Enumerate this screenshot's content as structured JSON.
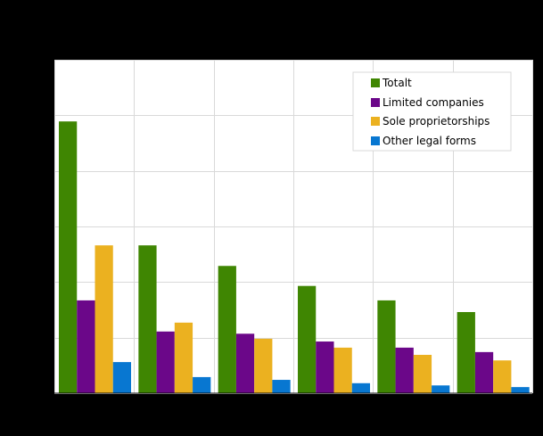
{
  "chart_data": {
    "type": "bar",
    "title": "",
    "xlabel": "",
    "ylabel": "",
    "categories": [
      "",
      "",
      "",
      "",
      "",
      ""
    ],
    "series": [
      {
        "name": "Totalt",
        "color": "#3f8602",
        "values": [
          4.89,
          2.66,
          2.29,
          1.93,
          1.67,
          1.46
        ]
      },
      {
        "name": "Limited companies",
        "color": "#6b0789",
        "values": [
          1.67,
          1.11,
          1.07,
          0.93,
          0.82,
          0.74
        ]
      },
      {
        "name": "Sole proprietorships",
        "color": "#ebb120",
        "values": [
          2.66,
          1.27,
          0.98,
          0.82,
          0.69,
          0.59
        ]
      },
      {
        "name": "Other legal forms",
        "color": "#0877d1",
        "values": [
          0.56,
          0.29,
          0.24,
          0.18,
          0.14,
          0.11
        ]
      }
    ],
    "ylim": [
      0,
      6
    ],
    "y_gridlines": 7,
    "x_gridlines": true,
    "grid": true,
    "legend_position": "top-right-inside",
    "units_note": "Values expressed in gridline units; axis tick labels not visible in render"
  },
  "legend": {
    "items": [
      {
        "label": "Totalt",
        "color": "#3f8602"
      },
      {
        "label": "Limited companies",
        "color": "#6b0789"
      },
      {
        "label": "Sole proprietorships",
        "color": "#ebb120"
      },
      {
        "label": "Other legal forms",
        "color": "#0877d1"
      }
    ]
  },
  "colors": {
    "background": "#000000",
    "plot_background": "#ffffff",
    "grid": "#d9d9d9"
  }
}
